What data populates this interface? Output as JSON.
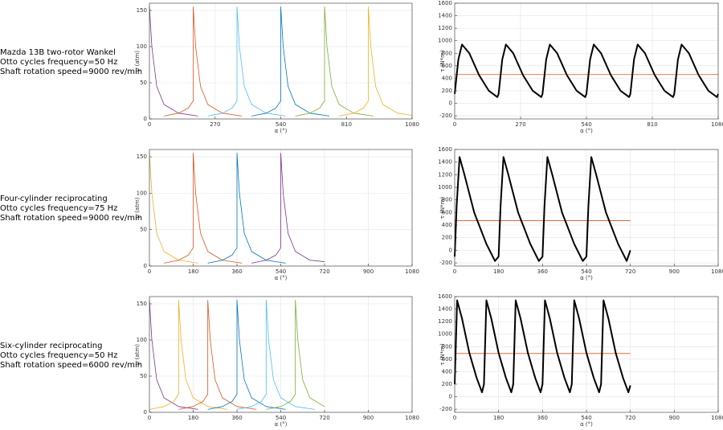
{
  "chart_data": [
    {
      "type": "line",
      "annotations": [
        "Mazda 13B two-rotor Wankel",
        "Otto cycles frequency=50 Hz",
        "Shaft rotation speed=9000 rev/min"
      ],
      "xlabel": "α (°)",
      "ylabel": "p (atm)",
      "xlim": [
        0,
        1080
      ],
      "ylim": [
        0,
        160
      ],
      "xticks": [
        0,
        270,
        540,
        810,
        1080
      ],
      "yticks": [
        0,
        50,
        100,
        150
      ],
      "grid": true,
      "series": [
        {
          "color": "#7e2f8e",
          "x": [
            0,
            10,
            30,
            60,
            120,
            200
          ],
          "values": [
            155,
            100,
            45,
            20,
            8,
            4
          ]
        },
        {
          "color": "#d95319",
          "x": [
            60,
            120,
            160,
            180,
            180,
            190,
            210,
            240,
            300,
            380
          ],
          "values": [
            4,
            8,
            15,
            25,
            155,
            100,
            45,
            20,
            8,
            4
          ]
        },
        {
          "color": "#4dbeee",
          "x": [
            240,
            300,
            340,
            360,
            360,
            370,
            390,
            420,
            480,
            560
          ],
          "values": [
            4,
            8,
            15,
            25,
            155,
            100,
            45,
            20,
            8,
            4
          ]
        },
        {
          "color": "#0072bd",
          "x": [
            420,
            480,
            520,
            540,
            540,
            550,
            570,
            600,
            660,
            740
          ],
          "values": [
            4,
            8,
            15,
            25,
            155,
            100,
            45,
            20,
            8,
            4
          ]
        },
        {
          "color": "#77ac30",
          "x": [
            600,
            660,
            700,
            720,
            720,
            730,
            750,
            780,
            840,
            920
          ],
          "values": [
            4,
            8,
            15,
            25,
            155,
            100,
            45,
            20,
            8,
            4
          ]
        },
        {
          "color": "#edb120",
          "x": [
            780,
            840,
            880,
            900,
            900,
            910,
            930,
            960,
            1020,
            1080
          ],
          "values": [
            4,
            8,
            15,
            25,
            155,
            100,
            45,
            20,
            8,
            5
          ]
        }
      ]
    },
    {
      "type": "line",
      "xlabel": "α (°)",
      "ylabel": "τ (N*m)",
      "xlim": [
        0,
        1080
      ],
      "ylim": [
        -250,
        1600
      ],
      "xticks": [
        0,
        270,
        540,
        810,
        1080
      ],
      "yticks": [
        -200,
        0,
        200,
        400,
        600,
        800,
        1000,
        1200,
        1400,
        1600
      ],
      "grid": true,
      "series": [
        {
          "color": "#d95319",
          "x": [
            0,
            1080
          ],
          "values": [
            460,
            460
          ]
        },
        {
          "color": "#000000",
          "line_width": 2,
          "x": [
            0,
            15,
            30,
            60,
            100,
            140,
            175,
            180,
            195,
            210,
            240,
            280,
            320,
            355,
            360,
            375,
            390,
            420,
            460,
            500,
            535,
            540,
            555,
            570,
            600,
            640,
            680,
            715,
            720,
            735,
            750,
            780,
            820,
            860,
            895,
            900,
            915,
            930,
            960,
            1000,
            1040,
            1075,
            1080
          ],
          "values": [
            150,
            700,
            940,
            800,
            450,
            200,
            100,
            150,
            700,
            940,
            800,
            450,
            200,
            100,
            150,
            700,
            940,
            800,
            450,
            200,
            100,
            150,
            700,
            940,
            800,
            450,
            200,
            100,
            150,
            700,
            940,
            800,
            450,
            200,
            100,
            150,
            700,
            940,
            800,
            450,
            200,
            100,
            150
          ]
        }
      ]
    },
    {
      "type": "line",
      "annotations": [
        "Four-cylinder reciprocating",
        "Otto cycles frequency=75 Hz",
        "Shaft rotation speed=9000 rev/min"
      ],
      "xlabel": "α (°)",
      "ylabel": "p (atm)",
      "xlim": [
        0,
        1080
      ],
      "ylim": [
        0,
        160
      ],
      "xticks": [
        0,
        180,
        360,
        540,
        720,
        900,
        1080
      ],
      "yticks": [
        0,
        50,
        100,
        150
      ],
      "grid": true,
      "series": [
        {
          "color": "#edb120",
          "x": [
            0,
            10,
            30,
            60,
            120,
            200
          ],
          "values": [
            155,
            100,
            45,
            20,
            8,
            4
          ]
        },
        {
          "color": "#d95319",
          "x": [
            60,
            120,
            160,
            180,
            180,
            190,
            210,
            240,
            300,
            380
          ],
          "values": [
            4,
            8,
            15,
            25,
            155,
            100,
            45,
            20,
            8,
            4
          ]
        },
        {
          "color": "#0072bd",
          "x": [
            240,
            300,
            340,
            360,
            360,
            370,
            390,
            420,
            480,
            560
          ],
          "values": [
            4,
            8,
            15,
            25,
            155,
            100,
            45,
            20,
            8,
            4
          ]
        },
        {
          "color": "#7e2f8e",
          "x": [
            420,
            480,
            520,
            540,
            540,
            550,
            570,
            600,
            660,
            720
          ],
          "values": [
            4,
            8,
            15,
            25,
            155,
            100,
            45,
            20,
            8,
            6
          ]
        }
      ]
    },
    {
      "type": "line",
      "xlabel": "α (°)",
      "ylabel": "τ (N*m)",
      "xlim": [
        0,
        1080
      ],
      "ylim": [
        -250,
        1600
      ],
      "xticks": [
        0,
        180,
        360,
        540,
        720,
        900,
        1080
      ],
      "yticks": [
        -200,
        0,
        200,
        400,
        600,
        800,
        1000,
        1200,
        1400,
        1600
      ],
      "grid": true,
      "series": [
        {
          "color": "#d95319",
          "x": [
            0,
            720
          ],
          "values": [
            470,
            470
          ]
        },
        {
          "color": "#000000",
          "line_width": 2,
          "x": [
            0,
            8,
            20,
            40,
            80,
            130,
            165,
            180,
            188,
            200,
            220,
            260,
            310,
            345,
            360,
            368,
            380,
            400,
            440,
            490,
            525,
            540,
            548,
            560,
            580,
            620,
            670,
            705,
            720
          ],
          "values": [
            -100,
            700,
            1480,
            1200,
            600,
            100,
            -170,
            -100,
            700,
            1480,
            1200,
            600,
            100,
            -170,
            -100,
            700,
            1480,
            1200,
            600,
            100,
            -170,
            -100,
            700,
            1480,
            1200,
            600,
            100,
            -170,
            0
          ]
        }
      ]
    },
    {
      "type": "line",
      "annotations": [
        "Six-cylinder reciprocating",
        "Otto cycles frequency=50 Hz",
        "Shaft rotation speed=6000 rev/min"
      ],
      "xlabel": "α (°)",
      "ylabel": "p (atm)",
      "xlim": [
        0,
        1080
      ],
      "ylim": [
        0,
        160
      ],
      "xticks": [
        0,
        180,
        360,
        540,
        720,
        900,
        1080
      ],
      "yticks": [
        0,
        50,
        100,
        150
      ],
      "grid": true,
      "series": [
        {
          "color": "#7e2f8e",
          "x": [
            0,
            10,
            30,
            60,
            120,
            200
          ],
          "values": [
            155,
            100,
            45,
            20,
            8,
            4
          ]
        },
        {
          "color": "#edb120",
          "x": [
            0,
            60,
            100,
            120,
            120,
            130,
            150,
            180,
            240,
            320
          ],
          "values": [
            4,
            8,
            15,
            25,
            155,
            100,
            45,
            20,
            8,
            4
          ]
        },
        {
          "color": "#d95319",
          "x": [
            120,
            180,
            220,
            240,
            240,
            250,
            270,
            300,
            360,
            440
          ],
          "values": [
            4,
            8,
            15,
            25,
            155,
            100,
            45,
            20,
            8,
            4
          ]
        },
        {
          "color": "#0072bd",
          "x": [
            240,
            300,
            340,
            360,
            360,
            370,
            390,
            420,
            480,
            560
          ],
          "values": [
            4,
            8,
            15,
            25,
            155,
            100,
            45,
            20,
            8,
            4
          ]
        },
        {
          "color": "#4dbeee",
          "x": [
            360,
            420,
            460,
            480,
            480,
            490,
            510,
            540,
            600,
            680
          ],
          "values": [
            4,
            8,
            15,
            25,
            155,
            100,
            45,
            20,
            8,
            4
          ]
        },
        {
          "color": "#77ac30",
          "x": [
            480,
            540,
            580,
            600,
            600,
            610,
            630,
            660,
            720
          ],
          "values": [
            4,
            8,
            15,
            25,
            155,
            100,
            45,
            20,
            8
          ]
        }
      ]
    },
    {
      "type": "line",
      "xlabel": "α (°)",
      "ylabel": "τ (N*m)",
      "xlim": [
        0,
        1080
      ],
      "ylim": [
        -250,
        1600
      ],
      "xticks": [
        0,
        180,
        360,
        540,
        720,
        900,
        1080
      ],
      "yticks": [
        -200,
        0,
        200,
        400,
        600,
        800,
        1000,
        1200,
        1400,
        1600
      ],
      "grid": true,
      "series": [
        {
          "color": "#d95319",
          "x": [
            0,
            720
          ],
          "values": [
            690,
            690
          ]
        },
        {
          "color": "#000000",
          "line_width": 2,
          "x": [
            0,
            10,
            30,
            60,
            90,
            112,
            120,
            130,
            150,
            180,
            210,
            232,
            240,
            250,
            270,
            300,
            330,
            352,
            360,
            370,
            390,
            420,
            450,
            472,
            480,
            490,
            510,
            540,
            570,
            592,
            600,
            610,
            630,
            660,
            690,
            712,
            720
          ],
          "values": [
            200,
            1540,
            1250,
            700,
            300,
            70,
            200,
            1540,
            1250,
            700,
            300,
            70,
            200,
            1540,
            1250,
            700,
            300,
            70,
            200,
            1540,
            1250,
            700,
            300,
            70,
            200,
            1540,
            1250,
            700,
            300,
            70,
            200,
            1540,
            1250,
            700,
            300,
            70,
            180
          ]
        }
      ]
    }
  ]
}
